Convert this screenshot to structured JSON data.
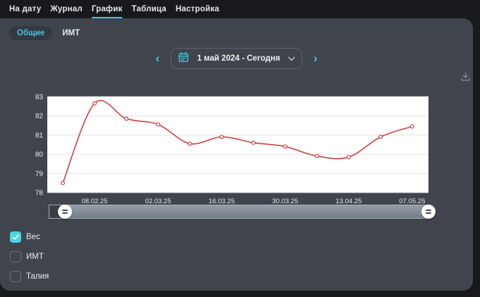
{
  "nav": {
    "items": [
      {
        "label": "На дату",
        "active": false
      },
      {
        "label": "Журнал",
        "active": false
      },
      {
        "label": "График",
        "active": true
      },
      {
        "label": "Таблица",
        "active": false
      },
      {
        "label": "Настройка",
        "active": false
      }
    ]
  },
  "tabs": [
    {
      "label": "Общие",
      "active": true
    },
    {
      "label": "ИМТ",
      "active": false
    }
  ],
  "date_selector": {
    "prev_symbol": "‹",
    "next_symbol": "›",
    "value": "1 май 2024 - Сегодня"
  },
  "legend": [
    {
      "label": "Вес",
      "checked": true
    },
    {
      "label": "ИМТ",
      "checked": false
    },
    {
      "label": "Талия",
      "checked": false
    }
  ],
  "colors": {
    "page_background": "#17191c",
    "panel_background": "#3f444d",
    "accent": "#45c6d8",
    "checkbox_checked": "#4bd5e4",
    "line_red": "#cf423e"
  },
  "icons": {
    "calendar": "calendar-icon",
    "chevron_down": "chevron-down-icon",
    "export": "download-icon",
    "handle_grip": "drag-handle-icon"
  },
  "chart_data": {
    "type": "line",
    "title": "",
    "xlabel": "",
    "ylabel": "",
    "series": [
      {
        "name": "Вес",
        "color": "#cf423e",
        "values": [
          78.5,
          82.65,
          81.85,
          81.55,
          80.55,
          80.9,
          80.6,
          80.4,
          79.9,
          79.85,
          80.9,
          81.45
        ]
      }
    ],
    "x_tick_labels": [
      "08.02.25",
      "02.03.25",
      "16.03.25",
      "30.03.25",
      "13.04.25",
      "07.05.25"
    ],
    "x_tick_point_indices": [
      1,
      3,
      5,
      7,
      9,
      11
    ],
    "ylim": [
      78,
      83
    ],
    "yticks": [
      78,
      79,
      80,
      81,
      82,
      83
    ],
    "grid": true,
    "legend_position": "none",
    "plot_bg": "#ffffff",
    "gridline_color": "#e2e2e2",
    "axis_label_color": "#e9ebee",
    "marker": "open-circle"
  }
}
